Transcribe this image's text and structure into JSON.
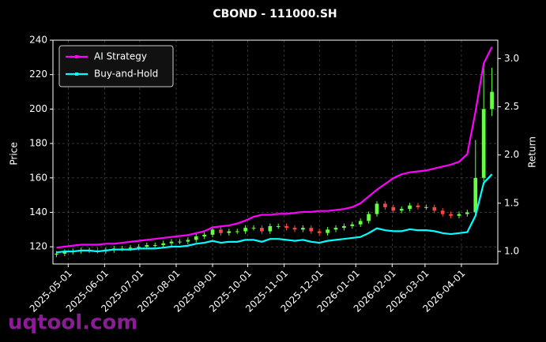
{
  "chart_data": {
    "type": "candlestick",
    "title": "CBOND - 111000.SH",
    "y_label": "Price",
    "y2_label": "Return",
    "watermark": "uqtool.com",
    "x": [
      "2025-04-21",
      "2025-04-28",
      "2025-05-05",
      "2025-05-12",
      "2025-05-19",
      "2025-05-26",
      "2025-06-02",
      "2025-06-09",
      "2025-06-16",
      "2025-06-23",
      "2025-06-30",
      "2025-07-07",
      "2025-07-14",
      "2025-07-21",
      "2025-07-28",
      "2025-08-04",
      "2025-08-11",
      "2025-08-18",
      "2025-08-25",
      "2025-09-01",
      "2025-09-08",
      "2025-09-15",
      "2025-09-22",
      "2025-09-29",
      "2025-10-06",
      "2025-10-13",
      "2025-10-20",
      "2025-10-27",
      "2025-11-03",
      "2025-11-10",
      "2025-11-17",
      "2025-11-24",
      "2025-12-01",
      "2025-12-08",
      "2025-12-15",
      "2025-12-22",
      "2025-12-29",
      "2026-01-05",
      "2026-01-12",
      "2026-01-19",
      "2026-01-26",
      "2026-02-02",
      "2026-02-09",
      "2026-02-16",
      "2026-02-23",
      "2026-03-02",
      "2026-03-09",
      "2026-03-16",
      "2026-03-23",
      "2026-03-30",
      "2026-04-06",
      "2026-04-13",
      "2026-04-20",
      "2026-04-27"
    ],
    "open": [
      115.5,
      116,
      117,
      117.5,
      118,
      118,
      117.5,
      118,
      119,
      119,
      119.5,
      120,
      121,
      121,
      122,
      123,
      123,
      124,
      126,
      127,
      130,
      128,
      129,
      129,
      131,
      131,
      129,
      132,
      132,
      131,
      130,
      131,
      129,
      128,
      130,
      131,
      132,
      133,
      135,
      139,
      145,
      143,
      141,
      142,
      144,
      143,
      143,
      141,
      139,
      138,
      139,
      140,
      160,
      200
    ],
    "high": [
      117.5,
      118.5,
      119,
      119.5,
      119.5,
      119.5,
      119.5,
      120.5,
      120.5,
      121,
      121.5,
      122.5,
      122.5,
      123.5,
      124.5,
      124.5,
      125.5,
      127.5,
      128.5,
      131.5,
      131.5,
      130.5,
      130.5,
      132.5,
      132.5,
      132.5,
      133.5,
      133.5,
      133.5,
      132.5,
      132.5,
      132.5,
      130.5,
      131.5,
      132.5,
      133.5,
      134.5,
      136.5,
      140.5,
      146.5,
      146.5,
      144.5,
      143.5,
      145.5,
      145.5,
      144.5,
      144.5,
      142.5,
      140.5,
      140.5,
      141.5,
      182,
      226,
      224
    ],
    "low": [
      114,
      114.5,
      115.5,
      116,
      116.5,
      116,
      116,
      116.5,
      117.5,
      117.5,
      118,
      118.5,
      119.5,
      119.5,
      120.5,
      121.5,
      121.5,
      122.5,
      124.5,
      125.5,
      126.5,
      126.5,
      127.5,
      127.5,
      129.5,
      127.5,
      127.5,
      130.5,
      129.5,
      128.5,
      128.5,
      127.5,
      126.5,
      126.5,
      128.5,
      129.5,
      130.5,
      131.5,
      133.5,
      137.5,
      141.5,
      139.5,
      139.5,
      140.5,
      141.5,
      141.5,
      139.5,
      137.5,
      136.5,
      136.5,
      137.5,
      138,
      158,
      196
    ],
    "close": [
      116,
      117,
      117.5,
      118,
      118,
      117.5,
      118,
      119,
      119,
      119.5,
      120,
      121,
      121,
      122,
      123,
      123,
      124,
      126,
      127,
      130,
      128,
      129,
      129,
      131,
      131,
      129,
      132,
      132,
      131,
      130,
      131,
      129,
      128,
      130,
      131,
      132,
      133,
      135,
      139,
      145,
      143,
      141,
      142,
      144,
      143,
      143,
      141,
      139,
      138,
      139,
      140,
      160,
      200,
      210
    ],
    "up_color": "#66ff44",
    "down_color": "#ff4444",
    "series": [
      {
        "name": "AI Strategy",
        "color": "#ff00ff",
        "axis": "y2",
        "values": [
          1.04,
          1.05,
          1.06,
          1.07,
          1.07,
          1.07,
          1.08,
          1.08,
          1.09,
          1.1,
          1.11,
          1.12,
          1.13,
          1.14,
          1.15,
          1.16,
          1.17,
          1.19,
          1.21,
          1.25,
          1.26,
          1.27,
          1.29,
          1.32,
          1.36,
          1.38,
          1.38,
          1.39,
          1.39,
          1.4,
          1.41,
          1.41,
          1.42,
          1.42,
          1.43,
          1.44,
          1.46,
          1.5,
          1.57,
          1.64,
          1.7,
          1.76,
          1.8,
          1.82,
          1.83,
          1.84,
          1.86,
          1.88,
          1.9,
          1.93,
          2.01,
          2.45,
          2.95,
          3.12
        ]
      },
      {
        "name": "Buy-and-Hold",
        "color": "#00ffff",
        "axis": "y2",
        "values": [
          0.99,
          1.0,
          1.0,
          1.01,
          1.01,
          1.0,
          1.01,
          1.02,
          1.02,
          1.02,
          1.03,
          1.03,
          1.03,
          1.04,
          1.05,
          1.05,
          1.06,
          1.08,
          1.09,
          1.11,
          1.09,
          1.1,
          1.1,
          1.12,
          1.12,
          1.1,
          1.13,
          1.13,
          1.12,
          1.11,
          1.12,
          1.1,
          1.09,
          1.11,
          1.12,
          1.13,
          1.14,
          1.15,
          1.19,
          1.24,
          1.22,
          1.21,
          1.21,
          1.23,
          1.22,
          1.22,
          1.21,
          1.19,
          1.18,
          1.19,
          1.2,
          1.37,
          1.71,
          1.8
        ]
      }
    ],
    "xlim": [
      "2025-04-18",
      "2026-05-02"
    ],
    "xticks": [
      "2025-05-01",
      "2025-06-01",
      "2025-07-01",
      "2025-08-01",
      "2025-09-01",
      "2025-10-01",
      "2025-11-01",
      "2025-12-01",
      "2026-01-01",
      "2026-02-01",
      "2026-03-01",
      "2026-04-01"
    ],
    "ylim": [
      110,
      240
    ],
    "yticks": [
      120,
      140,
      160,
      180,
      200,
      220,
      240
    ],
    "y2lim": [
      0.87,
      3.19
    ],
    "y2ticks": [
      {
        "value": 1,
        "label": "1.0"
      },
      {
        "value": 1.5,
        "label": "1.5"
      },
      {
        "value": 2,
        "label": "2.0"
      },
      {
        "value": 2.5,
        "label": "2.5"
      },
      {
        "value": 3,
        "label": "3.0"
      }
    ],
    "grid": true,
    "legend": "upper left"
  }
}
